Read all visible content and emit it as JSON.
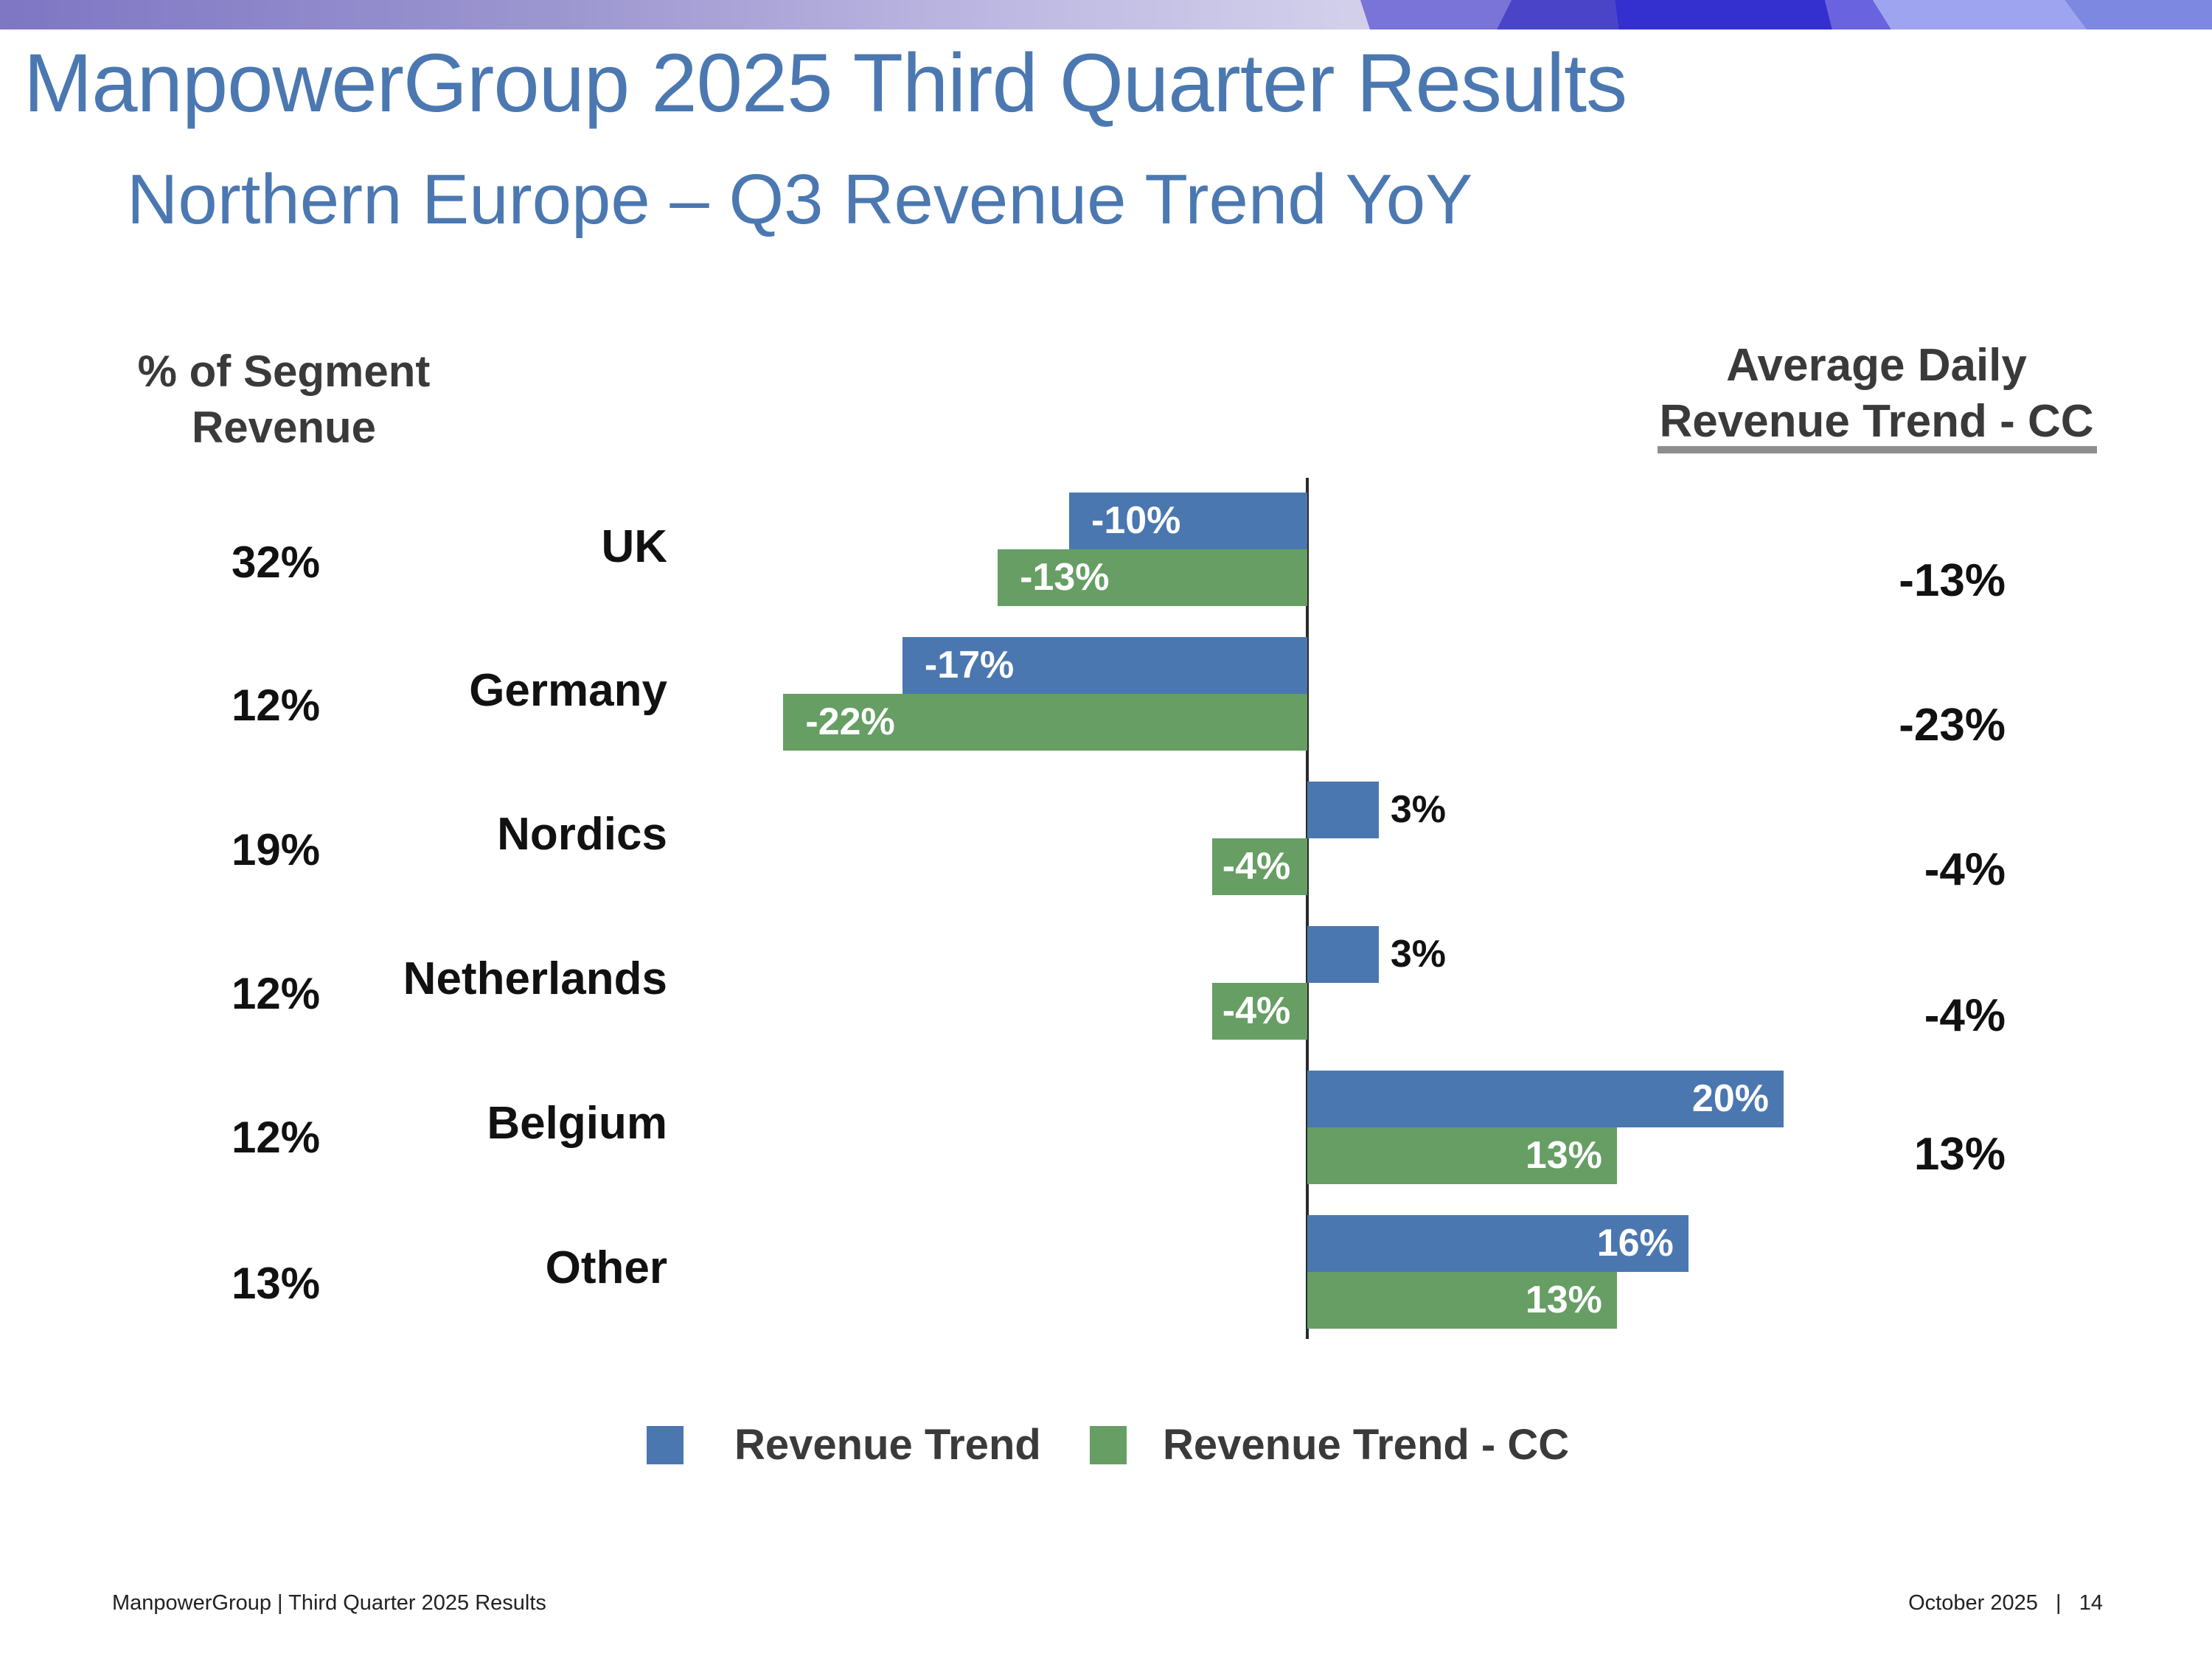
{
  "header": {
    "title": "ManpowerGroup 2025 Third Quarter Results",
    "subtitle": "Northern Europe – Q3 Revenue Trend YoY"
  },
  "colors": {
    "title": "#4b78b1",
    "revenue_trend": "#4b77b0",
    "revenue_trend_cc": "#669e64"
  },
  "columns": {
    "segment_header": [
      "% of Segment",
      "Revenue"
    ],
    "adr_header": [
      "Average Daily",
      "Revenue Trend - CC"
    ]
  },
  "rows": [
    {
      "category": "UK",
      "segment_pct": "32%",
      "adr_cc": "-13%"
    },
    {
      "category": "Germany",
      "segment_pct": "12%",
      "adr_cc": "-23%"
    },
    {
      "category": "Nordics",
      "segment_pct": "19%",
      "adr_cc": "-4%"
    },
    {
      "category": "Netherlands",
      "segment_pct": "12%",
      "adr_cc": "-4%"
    },
    {
      "category": "Belgium",
      "segment_pct": "12%",
      "adr_cc": "13%"
    },
    {
      "category": "Other",
      "segment_pct": "13%",
      "adr_cc": ""
    }
  ],
  "chart_data": {
    "type": "bar",
    "orientation": "horizontal",
    "title": "Northern Europe – Q3 Revenue Trend YoY",
    "categories": [
      "UK",
      "Germany",
      "Nordics",
      "Netherlands",
      "Belgium",
      "Other"
    ],
    "series": [
      {
        "name": "Revenue Trend",
        "values": [
          -10,
          -17,
          3,
          3,
          20,
          16
        ],
        "labels": [
          "-10%",
          "-17%",
          "3%",
          "3%",
          "20%",
          "16%"
        ]
      },
      {
        "name": "Revenue Trend - CC",
        "values": [
          -13,
          -22,
          -4,
          -4,
          13,
          13
        ],
        "labels": [
          "-13%",
          "-22%",
          "-4%",
          "-4%",
          "13%",
          "13%"
        ]
      }
    ],
    "xlabel": "",
    "ylabel": "",
    "xlim": [
      -22,
      20
    ],
    "grid": false,
    "legend_position": "bottom"
  },
  "legend": {
    "items": [
      "Revenue Trend",
      "Revenue Trend - CC"
    ]
  },
  "footer": {
    "left": "ManpowerGroup  |  Third Quarter 2025 Results",
    "right": "October 2025   |   14"
  }
}
